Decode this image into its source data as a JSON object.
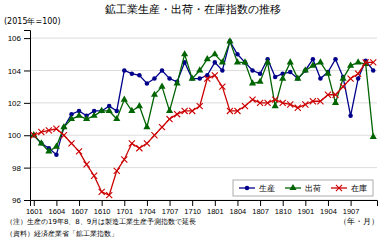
{
  "chart_data": {
    "type": "line",
    "title": "鉱工業生産・出荷・在庫指数の推移",
    "ylabel": "(2015年=100)",
    "xlabel": "（年・月）",
    "notes": [
      "（注）生産の19年8、8、9月は製造工業生産予測指数で延長",
      "（資料）経済産業省「鉱工業指数」"
    ],
    "categories": [
      "1601",
      null,
      null,
      "1604",
      null,
      null,
      "1607",
      null,
      null,
      "1610",
      null,
      null,
      "1701",
      null,
      null,
      "1704",
      null,
      null,
      "1707",
      null,
      null,
      "1710",
      null,
      null,
      "1801",
      null,
      null,
      "1804",
      null,
      null,
      "1807",
      null,
      null,
      "1810",
      null,
      null,
      "1901",
      null,
      null,
      "1904",
      null,
      null,
      "1907",
      null,
      null,
      null
    ],
    "series": [
      {
        "name": "生産",
        "color": "#00008B",
        "marker": "circle",
        "values": [
          100.0,
          99.5,
          99.2,
          98.8,
          100.5,
          101.3,
          101.5,
          101.2,
          101.5,
          101.5,
          101.8,
          101.5,
          104.0,
          103.8,
          103.7,
          103.2,
          103.5,
          104.0,
          103.5,
          103.3,
          104.5,
          103.5,
          103.5,
          103.7,
          104.5,
          104.0,
          105.8,
          105.0,
          104.5,
          104.0,
          103.8,
          104.7,
          103.6,
          103.8,
          103.9,
          103.5,
          104.0,
          104.7,
          103.5,
          103.9,
          104.7,
          103.6,
          101.2,
          103.5,
          104.6,
          104.0
        ]
      },
      {
        "name": "出荷",
        "color": "#006400",
        "marker": "triangle",
        "values": [
          100.0,
          99.5,
          99.0,
          99.3,
          100.5,
          101.0,
          101.2,
          101.0,
          101.2,
          101.5,
          101.5,
          101.0,
          102.2,
          101.5,
          101.8,
          100.5,
          102.5,
          103.0,
          101.5,
          103.2,
          105.0,
          103.5,
          104.0,
          104.7,
          105.0,
          104.5,
          105.8,
          104.5,
          104.5,
          103.2,
          103.3,
          104.5,
          101.8,
          103.5,
          104.5,
          103.5,
          104.0,
          104.3,
          104.5,
          103.8,
          102.0,
          103.5,
          104.3,
          104.5,
          104.4,
          99.9
        ]
      },
      {
        "name": "在庫",
        "color": "#CC0000",
        "marker": "x",
        "values": [
          100.0,
          100.2,
          100.3,
          100.4,
          100.0,
          99.5,
          99.0,
          98.2,
          97.5,
          96.5,
          96.3,
          97.8,
          98.5,
          99.5,
          99.2,
          99.5,
          100.0,
          100.5,
          101.0,
          101.3,
          101.5,
          101.5,
          101.8,
          103.5,
          103.7,
          103.0,
          101.5,
          101.5,
          101.8,
          102.2,
          102.0,
          102.0,
          102.2,
          102.0,
          101.9,
          101.7,
          101.9,
          102.1,
          102.1,
          102.5,
          102.5,
          103.0,
          103.5,
          103.8,
          104.5,
          104.5
        ]
      }
    ],
    "ylim": [
      96,
      106.5
    ],
    "yticks": [
      96,
      98,
      100,
      102,
      104,
      106
    ],
    "grid": true,
    "legend": "lower right"
  }
}
